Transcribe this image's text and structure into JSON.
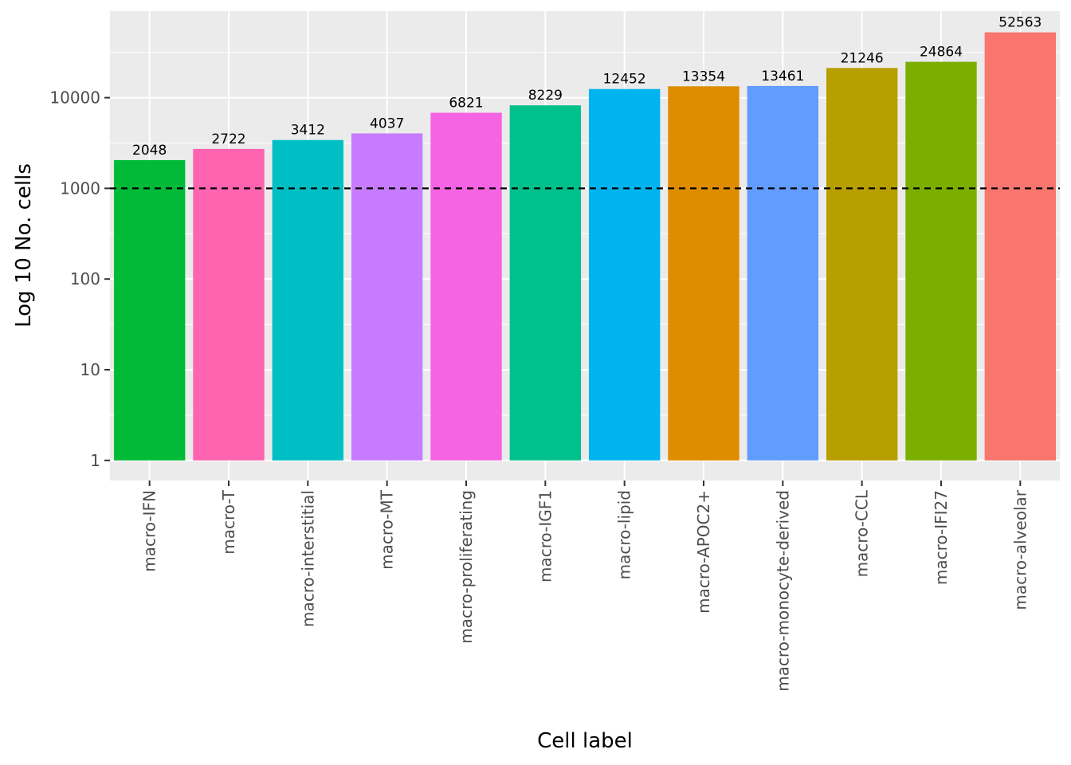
{
  "chart_data": {
    "type": "bar",
    "xlabel": "Cell label",
    "ylabel": "Log 10 No. cells",
    "y_scale": "log10",
    "ylim": [
      0.6,
      90000
    ],
    "y_ticks": [
      1,
      10,
      100,
      1000,
      10000
    ],
    "y_tick_labels": [
      "1",
      "10",
      "100",
      "1000",
      "10000"
    ],
    "reference_line": {
      "value": 1000,
      "style": "dashed",
      "color": "#000000"
    },
    "grid": true,
    "background": "#ebebeb",
    "categories": [
      "macro-IFN",
      "macro-T",
      "macro-interstitial",
      "macro-MT",
      "macro-proliferating",
      "macro-IGF1",
      "macro-lipid",
      "macro-APOC2+",
      "macro-monocyte-derived",
      "macro-CCL",
      "macro-IFI27",
      "macro-alveolar"
    ],
    "values": [
      2048,
      2722,
      3412,
      4037,
      6821,
      8229,
      12452,
      13354,
      13461,
      21246,
      24864,
      52563
    ],
    "colors": [
      "#00BA38",
      "#FF64B0",
      "#00BFC4",
      "#C77CFF",
      "#F564E3",
      "#00C08B",
      "#00B4F0",
      "#DE8C00",
      "#619CFF",
      "#B79F00",
      "#7CAE00",
      "#F8766D"
    ]
  }
}
